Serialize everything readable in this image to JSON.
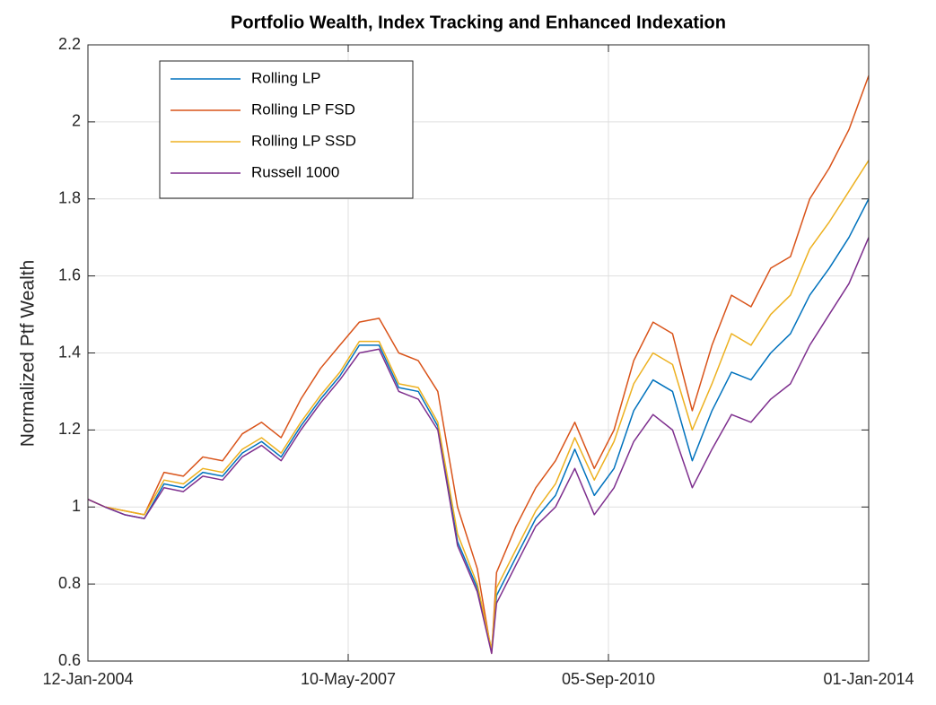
{
  "chart_data": {
    "type": "line",
    "title": "Portfolio Wealth, Index Tracking and Enhanced Indexation",
    "y_label": "Normalized Ptf Wealth",
    "x": [
      "2004-01-12",
      "2004-04-01",
      "2004-07-01",
      "2004-10-01",
      "2005-01-01",
      "2005-04-01",
      "2005-07-01",
      "2005-10-01",
      "2006-01-01",
      "2006-04-01",
      "2006-07-01",
      "2006-10-01",
      "2007-01-01",
      "2007-04-01",
      "2007-07-01",
      "2007-10-01",
      "2008-01-01",
      "2008-04-01",
      "2008-07-01",
      "2008-10-01",
      "2009-01-01",
      "2009-03-09",
      "2009-04-01",
      "2009-07-01",
      "2009-10-01",
      "2010-01-01",
      "2010-04-01",
      "2010-07-01",
      "2010-10-01",
      "2011-01-01",
      "2011-04-01",
      "2011-07-01",
      "2011-10-01",
      "2012-01-01",
      "2012-04-01",
      "2012-07-01",
      "2012-10-01",
      "2013-01-01",
      "2013-04-01",
      "2013-07-01",
      "2013-10-01",
      "2014-01-01"
    ],
    "series": [
      {
        "name": "Rolling LP",
        "color": "#0072bd",
        "values": [
          1.02,
          1.0,
          0.98,
          0.97,
          1.06,
          1.05,
          1.09,
          1.08,
          1.14,
          1.17,
          1.13,
          1.21,
          1.28,
          1.34,
          1.42,
          1.42,
          1.31,
          1.3,
          1.21,
          0.91,
          0.79,
          0.63,
          0.77,
          0.87,
          0.97,
          1.03,
          1.15,
          1.03,
          1.1,
          1.25,
          1.33,
          1.3,
          1.12,
          1.25,
          1.35,
          1.33,
          1.4,
          1.45,
          1.55,
          1.62,
          1.7,
          1.8
        ]
      },
      {
        "name": "Rolling LP FSD",
        "color": "#d95319",
        "values": [
          1.02,
          1.0,
          0.99,
          0.98,
          1.09,
          1.08,
          1.13,
          1.12,
          1.19,
          1.22,
          1.18,
          1.28,
          1.36,
          1.42,
          1.48,
          1.49,
          1.4,
          1.38,
          1.3,
          1.0,
          0.84,
          0.62,
          0.83,
          0.95,
          1.05,
          1.12,
          1.22,
          1.1,
          1.2,
          1.38,
          1.48,
          1.45,
          1.25,
          1.42,
          1.55,
          1.52,
          1.62,
          1.65,
          1.8,
          1.88,
          1.98,
          2.12
        ]
      },
      {
        "name": "Rolling LP SSD",
        "color": "#edb120",
        "values": [
          1.02,
          1.0,
          0.99,
          0.98,
          1.07,
          1.06,
          1.1,
          1.09,
          1.15,
          1.18,
          1.14,
          1.22,
          1.29,
          1.35,
          1.43,
          1.43,
          1.32,
          1.31,
          1.22,
          0.93,
          0.8,
          0.63,
          0.79,
          0.89,
          0.99,
          1.06,
          1.18,
          1.07,
          1.17,
          1.32,
          1.4,
          1.37,
          1.2,
          1.32,
          1.45,
          1.42,
          1.5,
          1.55,
          1.67,
          1.74,
          1.82,
          1.9
        ]
      },
      {
        "name": "Russell 1000",
        "color": "#7e2f8e",
        "values": [
          1.02,
          1.0,
          0.98,
          0.97,
          1.05,
          1.04,
          1.08,
          1.07,
          1.13,
          1.16,
          1.12,
          1.2,
          1.27,
          1.33,
          1.4,
          1.41,
          1.3,
          1.28,
          1.2,
          0.9,
          0.78,
          0.62,
          0.75,
          0.85,
          0.95,
          1.0,
          1.1,
          0.98,
          1.05,
          1.17,
          1.24,
          1.2,
          1.05,
          1.15,
          1.24,
          1.22,
          1.28,
          1.32,
          1.42,
          1.5,
          1.58,
          1.7
        ]
      }
    ],
    "xlim": [
      "2004-01-12",
      "2014-01-01"
    ],
    "xticks": [
      {
        "value": "2004-01-12",
        "label": "12-Jan-2004"
      },
      {
        "value": "2007-05-10",
        "label": "10-May-2007"
      },
      {
        "value": "2010-09-05",
        "label": "05-Sep-2010"
      },
      {
        "value": "2014-01-01",
        "label": "01-Jan-2014"
      }
    ],
    "ylim": [
      0.6,
      2.2
    ],
    "yticks": [
      0.6,
      0.8,
      1,
      1.2,
      1.4,
      1.6,
      1.8,
      2,
      2.2
    ],
    "grid": true,
    "legend": "upper left"
  }
}
